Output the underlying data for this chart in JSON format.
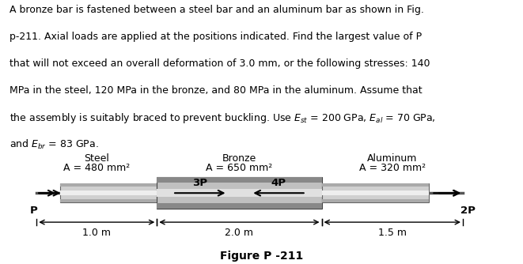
{
  "title_text": "Figure P -211",
  "steel_label": "Steel",
  "steel_area": "A = 480 mm²",
  "bronze_label": "Bronze",
  "bronze_area": "A = 650 mm²",
  "aluminum_label": "Aluminum",
  "aluminum_area": "A = 320 mm²",
  "load_P": "P",
  "load_3P": "3P",
  "load_4P": "4P",
  "load_2P": "2P",
  "length_steel": "1.0 m",
  "length_bronze": "2.0 m",
  "length_aluminum": "1.5 m",
  "text_color": "#000000",
  "bg_color": "#ffffff",
  "para_lines": [
    "A bronze bar is fastened between a steel bar and an aluminum bar as shown in Fig.",
    "p-211. Axial loads are applied at the positions indicated. Find the largest value of P",
    "that will not exceed an overall deformation of 3.0 mm, or the following stresses: 140",
    "MPa in the steel, 120 MPa in the bronze, and 80 MPa in the aluminum. Assume that",
    "the assembly is suitably braced to prevent buckling. Use E_st = 200 GPa, E_al = 70 GPa,",
    "and E_br = 83 GPa."
  ]
}
